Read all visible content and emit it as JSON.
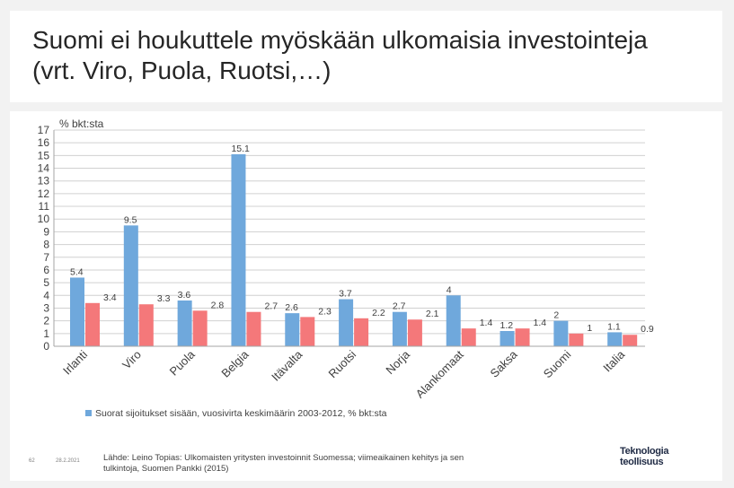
{
  "slide": {
    "title": "Suomi ei houkuttele myöskään ulkomaisia investointeja (vrt. Viro, Puola, Ruotsi,…)",
    "page_number": "62",
    "date": "28.2.2021",
    "source": "Lähde: Leino Topias: Ulkomaisten yritysten investoinnit Suomessa; viimeaikainen kehitys ja sen tulkintoja, Suomen Pankki (2015)",
    "logo_line1": "Teknologia",
    "logo_line2": "teollisuus"
  },
  "chart_data": {
    "type": "bar",
    "unit_label": "% bkt:sta",
    "categories": [
      "Irlanti",
      "Viro",
      "Puola",
      "Belgia",
      "Itävalta",
      "Ruotsi",
      "Norja",
      "Alankomaat",
      "Saksa",
      "Suomi",
      "Italia"
    ],
    "series": [
      {
        "name": "Suorat sijoitukset sisään, vuosivirta keskimäärin 2003-2012, % bkt:sta",
        "color": "#6fa8dc",
        "values": [
          5.4,
          9.5,
          3.6,
          15.1,
          2.6,
          3.7,
          2.7,
          4,
          1.2,
          2,
          1.1
        ]
      },
      {
        "name": "",
        "color": "#f4787a",
        "values": [
          3.4,
          3.3,
          2.8,
          2.7,
          2.3,
          2.2,
          2.1,
          1.4,
          1.4,
          1,
          0.9
        ]
      }
    ],
    "value_labels": [
      [
        "5.4",
        "9.5",
        "3.6",
        "15.1",
        "2.6",
        "3.7",
        "2.7",
        "4",
        "1.2",
        "2",
        "1.1"
      ],
      [
        "3.4",
        "3.3",
        "2.8",
        "2.7",
        "2.3",
        "2.2",
        "2.1",
        "1.4",
        "1.4",
        "1",
        "0.9"
      ]
    ],
    "ylim": [
      0,
      17
    ],
    "yticks": [
      0,
      1,
      2,
      3,
      4,
      5,
      6,
      7,
      8,
      9,
      10,
      11,
      12,
      13,
      14,
      15,
      16,
      17
    ],
    "grid": true,
    "legend_position": "bottom"
  }
}
